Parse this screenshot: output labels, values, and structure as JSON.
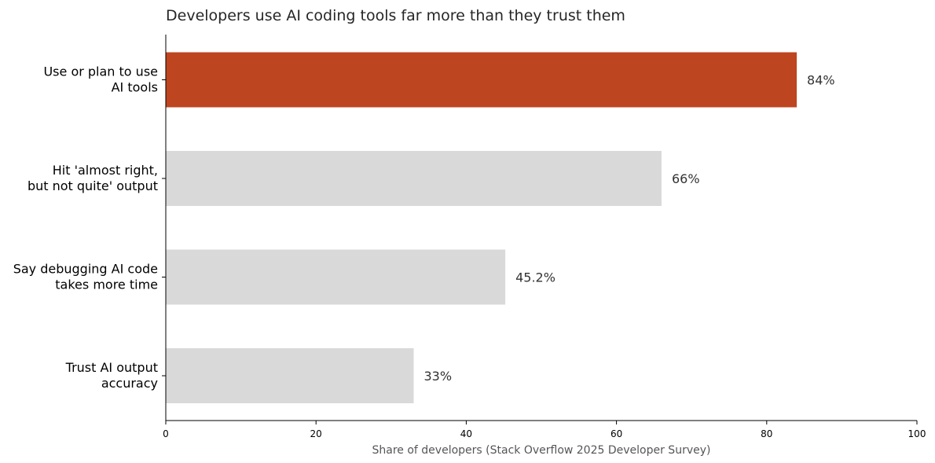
{
  "chart_data": {
    "type": "bar",
    "orientation": "horizontal",
    "title": "Developers use AI coding tools far more than they trust them",
    "xlabel": "Share of developers (Stack Overflow 2025 Developer Survey)",
    "ylabel": "",
    "xlim": [
      0,
      100
    ],
    "xticks": [
      0,
      20,
      40,
      60,
      80,
      100
    ],
    "grid": false,
    "categories": [
      [
        "Use or plan to use",
        "AI tools"
      ],
      [
        "Hit 'almost right,",
        "but not quite' output"
      ],
      [
        "Say debugging AI code",
        "takes more time"
      ],
      [
        "Trust AI output",
        "accuracy"
      ]
    ],
    "values": [
      84,
      66,
      45.2,
      33
    ],
    "value_labels": [
      "84%",
      "66%",
      "45.2%",
      "33%"
    ],
    "colors": [
      "#bd451f",
      "#d9d9d9",
      "#d9d9d9",
      "#d9d9d9"
    ],
    "highlight_color": "#bd451f",
    "base_color": "#d9d9d9"
  }
}
